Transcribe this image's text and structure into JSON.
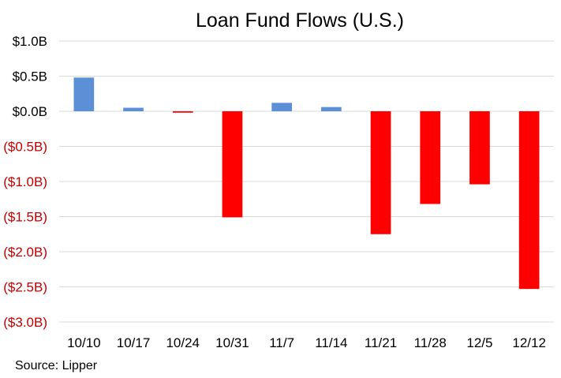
{
  "chart_data": {
    "type": "bar",
    "title": "Loan Fund Flows (U.S.)",
    "xlabel": "",
    "ylabel": "",
    "source": "Source: Lipper",
    "categories": [
      "10/10",
      "10/17",
      "10/24",
      "10/31",
      "11/7",
      "11/14",
      "11/21",
      "11/28",
      "12/5",
      "12/12"
    ],
    "values": [
      0.48,
      0.05,
      -0.02,
      -1.51,
      0.12,
      0.06,
      -1.75,
      -1.32,
      -1.04,
      -2.53
    ],
    "ylim": [
      -3.0,
      1.0
    ],
    "yticks": [
      1.0,
      0.5,
      0.0,
      -0.5,
      -1.0,
      -1.5,
      -2.0,
      -2.5,
      -3.0
    ],
    "ytick_labels": [
      "$1.0B",
      "$0.5B",
      "$0.0B",
      "($0.5B)",
      "($1.0B)",
      "($1.5B)",
      "($2.0B)",
      "($2.5B)",
      "($3.0B)"
    ],
    "grid": true,
    "colors": {
      "positive": "#5b8fd6",
      "negative": "#ff0000",
      "positive_label": "#000000",
      "negative_label": "#c00000"
    }
  }
}
